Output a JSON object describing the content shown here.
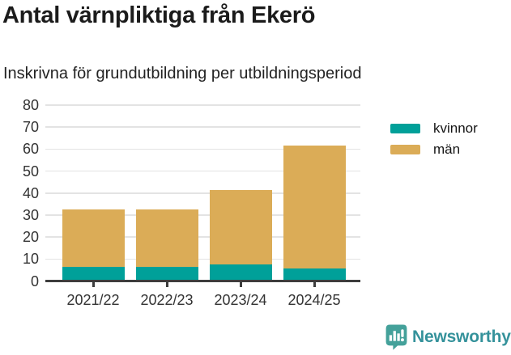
{
  "header": {
    "title": "Antal värnpliktiga från Ekerö",
    "subtitle": "Inskrivna för grundutbildning per utbildningsperiod"
  },
  "chart_data": {
    "type": "bar",
    "stacked": true,
    "title": "Antal värnpliktiga från Ekerö",
    "subtitle": "Inskrivna för grundutbildning per utbildningsperiod",
    "categories": [
      "2021/22",
      "2022/23",
      "2023/24",
      "2024/25"
    ],
    "series": [
      {
        "name": "kvinnor",
        "color": "#00a099",
        "values": [
          6,
          6,
          7,
          5
        ]
      },
      {
        "name": "män",
        "color": "#dbac57",
        "values": [
          26,
          26,
          34,
          56
        ]
      }
    ],
    "stack_totals": [
      32,
      32,
      41,
      61
    ],
    "xlabel": "",
    "ylabel": "",
    "ylim": [
      0,
      80
    ],
    "yticks": [
      0,
      10,
      20,
      30,
      40,
      50,
      60,
      70,
      80
    ],
    "grid": true,
    "legend_position": "right-top"
  },
  "colors": {
    "axis": "#3d3d3d",
    "grid": "#e3e3e3",
    "tick_text": "#333333"
  },
  "footer": {
    "brand": "Newsworthy",
    "icon_color": "#44a19a",
    "text_color": "#35929b"
  }
}
